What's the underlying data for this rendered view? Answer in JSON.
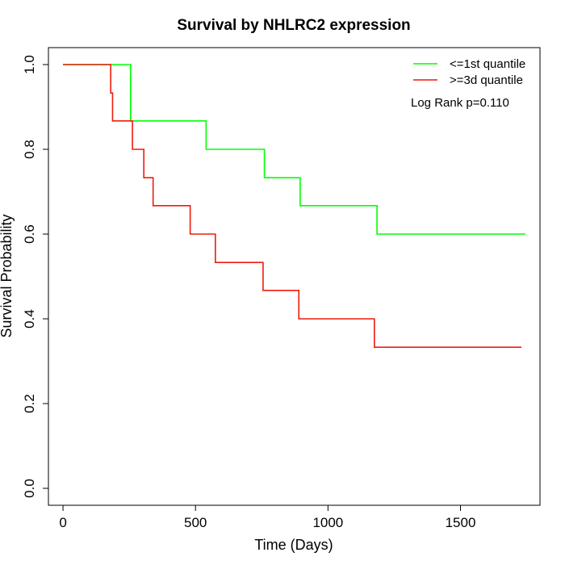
{
  "chart_data": {
    "type": "line",
    "title": "Survival by NHLRC2 expression",
    "xlabel": "Time (Days)",
    "ylabel": "Survival Probability",
    "xlim": [
      -55,
      1800
    ],
    "ylim": [
      -0.04,
      1.04
    ],
    "x_ticks": [
      0,
      500,
      1000,
      1500
    ],
    "y_ticks": [
      0.0,
      0.2,
      0.4,
      0.6,
      0.8,
      1.0
    ],
    "x_tick_labels": [
      "0",
      "500",
      "1000",
      "1500"
    ],
    "y_tick_labels": [
      "0.0",
      "0.2",
      "0.4",
      "0.6",
      "0.8",
      "1.0"
    ],
    "grid": false,
    "legend_position": "top-right",
    "annotation": "Log Rank p=0.110",
    "series": [
      {
        "name": "<=1st quantile",
        "color": "#00ff00",
        "step": true,
        "x": [
          0,
          255,
          540,
          760,
          895,
          1185,
          1745
        ],
        "y": [
          1.0,
          0.867,
          0.8,
          0.733,
          0.667,
          0.6,
          0.6
        ]
      },
      {
        "name": ">=3d quantile",
        "color": "#ee1c0e",
        "step": true,
        "x": [
          0,
          180,
          187,
          262,
          305,
          340,
          480,
          575,
          755,
          890,
          1175,
          1730
        ],
        "y": [
          1.0,
          0.933,
          0.867,
          0.8,
          0.733,
          0.667,
          0.6,
          0.533,
          0.467,
          0.4,
          0.333,
          0.333
        ]
      }
    ]
  }
}
